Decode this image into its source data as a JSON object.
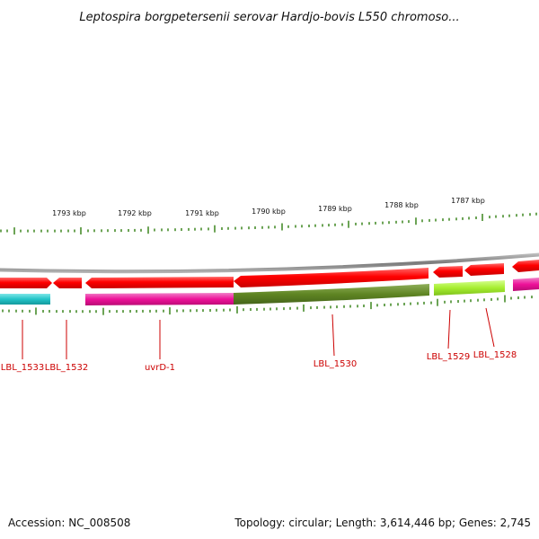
{
  "title": "Leptospira borgpetersenii serovar Hardjo-bovis L550 chromoso...",
  "footer": {
    "accession": "Accession: NC_008508",
    "summary": "Topology: circular; Length: 3,614,446 bp; Genes: 2,745"
  },
  "colors": {
    "backbone": "#8a8a8a",
    "tick": "#2e7d0e",
    "label": "#cc0000",
    "gene_red": "#ff0000",
    "gene_magenta": "#ee1199",
    "gene_teal": "#22c4c8",
    "gene_olive": "#5f8523",
    "gene_lime": "#a6ee30"
  },
  "ruler": {
    "labels": [
      "1793 kbp",
      "1792 kbp",
      "1791 kbp",
      "1790 kbp",
      "1789 kbp",
      "1788 kbp",
      "1787 kbp"
    ]
  },
  "gene_labels": [
    "LBL_1533",
    "LBL_1532",
    "uvrD-1",
    "LBL_1530",
    "LBL_1529",
    "LBL_1528"
  ]
}
